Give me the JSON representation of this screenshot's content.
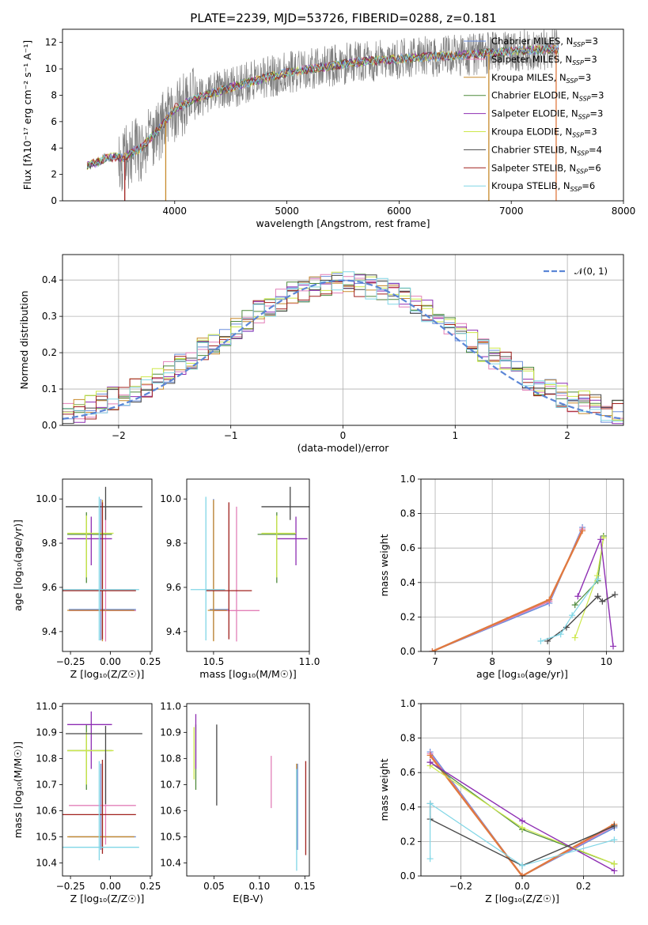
{
  "figure": {
    "title": "PLATE=2239, MJD=53726, FIBERID=0288, z=0.181"
  },
  "colors": {
    "Chabrier MILES": "#6a8ddb",
    "Salpeter MILES": "#e27fb8",
    "Kroupa MILES": "#c88a2c",
    "Chabrier ELODIE": "#4f8a3c",
    "Salpeter ELODIE": "#8e2eb3",
    "Kroupa ELODIE": "#cde84b",
    "Chabrier STELIB": "#484848",
    "Salpeter STELIB": "#a0201d",
    "Kroupa STELIB": "#80d6e6",
    "data": "#7f7f7f",
    "orange_line": "#e0793f",
    "normal": "#5b86d6"
  },
  "chart_data": [
    {
      "panel": "spectrum",
      "type": "line",
      "xlabel": "wavelength [Angstrom, rest frame]",
      "ylabel": "Flux [fλ10⁻¹⁷ erg cm⁻² s⁻¹ A⁻¹]",
      "xlim": [
        3000,
        8000
      ],
      "ylim": [
        0,
        13
      ],
      "xticks": [
        4000,
        5000,
        6000,
        7000,
        8000
      ],
      "yticks": [
        0,
        2,
        4,
        6,
        8,
        10,
        12
      ],
      "x_range_data": [
        3220,
        7420
      ],
      "continuum_x": [
        3220,
        3400,
        3550,
        3700,
        3900,
        4000,
        4200,
        4500,
        4800,
        5000,
        5300,
        5600,
        5900,
        6200,
        6500,
        6800,
        7100,
        7420
      ],
      "continuum_y": [
        2.6,
        3.3,
        3.3,
        4.0,
        5.8,
        7.0,
        7.8,
        8.6,
        9.3,
        9.7,
        10.1,
        10.5,
        10.7,
        10.9,
        11.0,
        11.2,
        11.4,
        11.5
      ],
      "legend_position": "upper right",
      "legend": [
        {
          "label": "Chabrier MILES, N",
          "sub": "SSP",
          "tail": "=3",
          "key": "Chabrier MILES"
        },
        {
          "label": "Salpeter MILES, N",
          "sub": "SSP",
          "tail": "=3",
          "key": "Salpeter MILES"
        },
        {
          "label": "Kroupa MILES, N",
          "sub": "SSP",
          "tail": "=3",
          "key": "Kroupa MILES"
        },
        {
          "label": "Chabrier ELODIE, N",
          "sub": "SSP",
          "tail": "=3",
          "key": "Chabrier ELODIE"
        },
        {
          "label": "Salpeter ELODIE, N",
          "sub": "SSP",
          "tail": "=3",
          "key": "Salpeter ELODIE"
        },
        {
          "label": "Kroupa ELODIE, N",
          "sub": "SSP",
          "tail": "=3",
          "key": "Kroupa ELODIE"
        },
        {
          "label": "Chabrier STELIB, N",
          "sub": "SSP",
          "tail": "=4",
          "key": "Chabrier STELIB"
        },
        {
          "label": "Salpeter STELIB, N",
          "sub": "SSP",
          "tail": "=6",
          "key": "Salpeter STELIB"
        },
        {
          "label": "Kroupa STELIB, N",
          "sub": "SSP",
          "tail": "=6",
          "key": "Kroupa STELIB"
        }
      ]
    },
    {
      "panel": "residuals",
      "type": "line",
      "xlabel": "(data-model)/error",
      "ylabel": "Normed distribution",
      "xlim": [
        -2.5,
        2.5
      ],
      "ylim": [
        0,
        0.47
      ],
      "xticks": [
        -2,
        -1,
        0,
        1,
        2
      ],
      "yticks": [
        0.0,
        0.1,
        0.2,
        0.3,
        0.4
      ],
      "grid": true,
      "legend": [
        {
          "label": "𝒩(0, 1)",
          "style": "dashed"
        }
      ],
      "bin_width": 0.1
    },
    {
      "panel": "age-vs-Z",
      "type": "scatter",
      "xlabel": "Z [log₁₀(Z/Z☉)]",
      "ylabel": "age  [log₁₀(age/yr)]",
      "xlim": [
        -0.3,
        0.26
      ],
      "ylim": [
        9.31,
        10.09
      ],
      "xticks": [
        -0.25,
        0.0,
        0.25
      ],
      "xticklabels": [
        "−0.25",
        "0.00",
        "0.25"
      ],
      "yticks": [
        9.4,
        9.6,
        9.8,
        10.0
      ],
      "points": [
        {
          "key": "Chabrier MILES",
          "x": -0.06,
          "xerr": [
            0.2,
            0.22
          ],
          "y": 9.5,
          "yerr": [
            0.14,
            0.5
          ]
        },
        {
          "key": "Salpeter MILES",
          "x": -0.03,
          "xerr": [
            0.23,
            0.19
          ],
          "y": 9.495,
          "yerr": [
            0.14,
            0.47
          ]
        },
        {
          "key": "Kroupa MILES",
          "x": -0.05,
          "xerr": [
            0.22,
            0.2
          ],
          "y": 9.496,
          "yerr": [
            0.14,
            0.5
          ]
        },
        {
          "key": "Chabrier ELODIE",
          "x": -0.15,
          "xerr": [
            0.12,
            0.16
          ],
          "y": 9.84,
          "yerr": [
            0.22,
            0.1
          ]
        },
        {
          "key": "Salpeter ELODIE",
          "x": -0.12,
          "xerr": [
            0.15,
            0.13
          ],
          "y": 9.82,
          "yerr": [
            0.12,
            0.1
          ]
        },
        {
          "key": "Kroupa ELODIE",
          "x": -0.15,
          "xerr": [
            0.12,
            0.17
          ],
          "y": 9.845,
          "yerr": [
            0.2,
            0.08
          ]
        },
        {
          "key": "Chabrier STELIB",
          "x": -0.03,
          "xerr": [
            0.25,
            0.23
          ],
          "y": 9.965,
          "yerr": [
            0.06,
            0.09
          ]
        },
        {
          "key": "Salpeter STELIB",
          "x": -0.05,
          "xerr": [
            0.25,
            0.21
          ],
          "y": 9.585,
          "yerr": [
            0.22,
            0.4
          ]
        },
        {
          "key": "Kroupa STELIB",
          "x": -0.07,
          "xerr": [
            0.23,
            0.25
          ],
          "y": 9.59,
          "yerr": [
            0.23,
            0.42
          ]
        }
      ]
    },
    {
      "panel": "age-vs-mass",
      "type": "scatter",
      "xlabel": "mass [log₁₀(M/M☉)]",
      "xlim": [
        10.36,
        11.0
      ],
      "ylim": [
        9.31,
        10.09
      ],
      "xticks": [
        10.5,
        11.0
      ],
      "xticklabels": [
        "10.5",
        "11.0"
      ],
      "yticks": [
        9.4,
        9.6,
        9.8,
        10.0
      ],
      "points": [
        {
          "key": "Chabrier MILES",
          "x": 10.5,
          "xerr": [
            0.02,
            0.08
          ],
          "y": 9.5,
          "yerr": [
            0.14,
            0.5
          ]
        },
        {
          "key": "Salpeter MILES",
          "x": 10.62,
          "xerr": [
            0.12,
            0.12
          ],
          "y": 9.495,
          "yerr": [
            0.14,
            0.47
          ]
        },
        {
          "key": "Kroupa MILES",
          "x": 10.5,
          "xerr": [
            0.03,
            0.07
          ],
          "y": 9.496,
          "yerr": [
            0.14,
            0.5
          ]
        },
        {
          "key": "Chabrier ELODIE",
          "x": 10.83,
          "xerr": [
            0.1,
            0.1
          ],
          "y": 9.84,
          "yerr": [
            0.22,
            0.1
          ]
        },
        {
          "key": "Salpeter ELODIE",
          "x": 10.93,
          "xerr": [
            0.1,
            0.06
          ],
          "y": 9.82,
          "yerr": [
            0.12,
            0.1
          ]
        },
        {
          "key": "Kroupa ELODIE",
          "x": 10.83,
          "xerr": [
            0.08,
            0.1
          ],
          "y": 9.845,
          "yerr": [
            0.2,
            0.08
          ]
        },
        {
          "key": "Chabrier STELIB",
          "x": 10.9,
          "xerr": [
            0.15,
            0.12
          ],
          "y": 9.965,
          "yerr": [
            0.06,
            0.09
          ]
        },
        {
          "key": "Salpeter STELIB",
          "x": 10.58,
          "xerr": [
            0.12,
            0.12
          ],
          "y": 9.585,
          "yerr": [
            0.22,
            0.4
          ]
        },
        {
          "key": "Kroupa STELIB",
          "x": 10.46,
          "xerr": [
            0.08,
            0.1
          ],
          "y": 9.59,
          "yerr": [
            0.23,
            0.42
          ]
        }
      ]
    },
    {
      "panel": "mass-weight-vs-age",
      "type": "line",
      "xlabel": "age  [log₁₀(age/yr)]",
      "ylabel": "mass weight",
      "xlim": [
        6.75,
        10.3
      ],
      "ylim": [
        0,
        1.0
      ],
      "xticks": [
        7,
        8,
        9,
        10
      ],
      "yticks": [
        0.0,
        0.2,
        0.4,
        0.6,
        0.8,
        1.0
      ],
      "series": [
        {
          "key": "Chabrier MILES",
          "x": [
            6.95,
            9.0,
            9.58
          ],
          "y": [
            0.0,
            0.28,
            0.72
          ],
          "width": 1.6
        },
        {
          "key": "Salpeter MILES",
          "x": [
            6.95,
            9.0,
            9.58
          ],
          "y": [
            0.0,
            0.29,
            0.71
          ],
          "width": 1.6
        },
        {
          "key": "orange_line",
          "x": [
            6.95,
            9.0,
            9.58
          ],
          "y": [
            0.0,
            0.3,
            0.7
          ],
          "width": 2.4
        },
        {
          "key": "Chabrier ELODIE",
          "x": [
            9.45,
            9.85,
            9.95
          ],
          "y": [
            0.27,
            0.41,
            0.67
          ],
          "width": 1.2
        },
        {
          "key": "Kroupa ELODIE",
          "x": [
            9.45,
            9.84,
            9.95
          ],
          "y": [
            0.08,
            0.44,
            0.66
          ],
          "width": 1.2
        },
        {
          "key": "Salpeter ELODIE",
          "x": [
            9.5,
            9.9,
            10.12
          ],
          "y": [
            0.32,
            0.65,
            0.03
          ],
          "width": 1.4
        },
        {
          "key": "Chabrier STELIB",
          "x": [
            8.97,
            9.3,
            9.85,
            9.93,
            10.15
          ],
          "y": [
            0.06,
            0.14,
            0.32,
            0.29,
            0.33
          ],
          "width": 1.4
        },
        {
          "key": "Kroupa STELIB",
          "x": [
            8.85,
            9.2,
            9.4,
            9.85
          ],
          "y": [
            0.06,
            0.1,
            0.21,
            0.42
          ],
          "width": 1.2
        }
      ]
    },
    {
      "panel": "mass-vs-Z",
      "type": "scatter",
      "xlabel": "Z [log₁₀(Z/Z☉)]",
      "ylabel": "mass [log₁₀(M/M☉)]",
      "xlim": [
        -0.3,
        0.26
      ],
      "ylim": [
        10.35,
        11.01
      ],
      "xticks": [
        -0.25,
        0.0,
        0.25
      ],
      "xticklabels": [
        "−0.25",
        "0.00",
        "0.25"
      ],
      "yticks": [
        10.4,
        10.5,
        10.6,
        10.7,
        10.8,
        10.9,
        11.0
      ],
      "points": [
        {
          "key": "Chabrier MILES",
          "x": -0.06,
          "xerr": [
            0.2,
            0.22
          ],
          "y": 10.5,
          "yerr": [
            0.05,
            0.28
          ]
        },
        {
          "key": "Salpeter MILES",
          "x": -0.03,
          "xerr": [
            0.23,
            0.19
          ],
          "y": 10.62,
          "yerr": [
            0.15,
            0.2
          ]
        },
        {
          "key": "Kroupa MILES",
          "x": -0.05,
          "xerr": [
            0.22,
            0.2
          ],
          "y": 10.5,
          "yerr": [
            0.05,
            0.28
          ]
        },
        {
          "key": "Chabrier ELODIE",
          "x": -0.15,
          "xerr": [
            0.12,
            0.16
          ],
          "y": 10.83,
          "yerr": [
            0.15,
            0.1
          ]
        },
        {
          "key": "Salpeter ELODIE",
          "x": -0.12,
          "xerr": [
            0.15,
            0.13
          ],
          "y": 10.93,
          "yerr": [
            0.17,
            0.05
          ]
        },
        {
          "key": "Kroupa ELODIE",
          "x": -0.15,
          "xerr": [
            0.12,
            0.17
          ],
          "y": 10.83,
          "yerr": [
            0.13,
            0.07
          ]
        },
        {
          "key": "Chabrier STELIB",
          "x": -0.03,
          "xerr": [
            0.25,
            0.23
          ],
          "y": 10.895,
          "yerr": [
            0.27,
            0.03
          ]
        },
        {
          "key": "Salpeter STELIB",
          "x": -0.05,
          "xerr": [
            0.25,
            0.21
          ],
          "y": 10.585,
          "yerr": [
            0.15,
            0.21
          ]
        },
        {
          "key": "Kroupa STELIB",
          "x": -0.07,
          "xerr": [
            0.23,
            0.25
          ],
          "y": 10.46,
          "yerr": [
            0.05,
            0.33
          ]
        }
      ]
    },
    {
      "panel": "mass-vs-EBV",
      "type": "scatter",
      "xlabel": "E(B-V)",
      "xlim": [
        0.02,
        0.155
      ],
      "ylim": [
        10.35,
        11.01
      ],
      "xticks": [
        0.05,
        0.1,
        0.15
      ],
      "xticklabels": [
        "0.05",
        "0.10",
        "0.15"
      ],
      "yticks": [
        10.4,
        10.5,
        10.6,
        10.7,
        10.8,
        10.9,
        11.0
      ],
      "points": [
        {
          "key": "Chabrier MILES",
          "x": 0.142,
          "y": 10.5,
          "yerr": [
            0.05,
            0.28
          ]
        },
        {
          "key": "Salpeter MILES",
          "x": 0.113,
          "y": 10.62,
          "yerr": [
            0.01,
            0.19
          ]
        },
        {
          "key": "Kroupa MILES",
          "x": 0.141,
          "y": 10.5,
          "yerr": [
            0.05,
            0.28
          ]
        },
        {
          "key": "Chabrier ELODIE",
          "x": 0.03,
          "y": 10.78,
          "yerr": [
            0.1,
            0.15
          ]
        },
        {
          "key": "Salpeter ELODIE",
          "x": 0.03,
          "y": 10.88,
          "yerr": [
            0.12,
            0.09
          ]
        },
        {
          "key": "Kroupa ELODIE",
          "x": 0.028,
          "y": 10.82,
          "yerr": [
            0.1,
            0.1
          ]
        },
        {
          "key": "Chabrier STELIB",
          "x": 0.053,
          "y": 10.78,
          "yerr": [
            0.16,
            0.15
          ]
        },
        {
          "key": "Salpeter STELIB",
          "x": 0.151,
          "y": 10.6,
          "yerr": [
            0.17,
            0.19
          ]
        },
        {
          "key": "Kroupa STELIB",
          "x": 0.141,
          "y": 10.46,
          "yerr": [
            0.09,
            0.3
          ]
        }
      ]
    },
    {
      "panel": "mass-weight-vs-Z",
      "type": "line",
      "xlabel": "Z [log₁₀(Z/Z☉)]",
      "ylabel": "mass weight",
      "xlim": [
        -0.33,
        0.33
      ],
      "ylim": [
        0,
        1.0
      ],
      "xticks": [
        -0.2,
        0.0,
        0.2
      ],
      "xticklabels": [
        "−0.2",
        "0.0",
        "0.2"
      ],
      "yticks": [
        0.0,
        0.2,
        0.4,
        0.6,
        0.8,
        1.0
      ],
      "series": [
        {
          "key": "Chabrier MILES",
          "x": [
            -0.3,
            0.0,
            0.3
          ],
          "y": [
            0.72,
            0.0,
            0.28
          ],
          "width": 1.6
        },
        {
          "key": "Salpeter MILES",
          "x": [
            -0.3,
            0.0,
            0.3
          ],
          "y": [
            0.71,
            0.0,
            0.29
          ],
          "width": 1.6
        },
        {
          "key": "orange_line",
          "x": [
            -0.3,
            0.0,
            0.3
          ],
          "y": [
            0.7,
            0.0,
            0.3
          ],
          "width": 2.4
        },
        {
          "key": "Chabrier ELODIE",
          "x": [
            -0.3,
            0.0,
            0.3
          ],
          "y": [
            0.66,
            0.27,
            0.07
          ],
          "width": 1.2
        },
        {
          "key": "Kroupa ELODIE",
          "x": [
            -0.3,
            0.0,
            0.3
          ],
          "y": [
            0.64,
            0.28,
            0.07
          ],
          "width": 1.2
        },
        {
          "key": "Salpeter ELODIE",
          "x": [
            -0.3,
            0.0,
            0.3
          ],
          "y": [
            0.66,
            0.32,
            0.03
          ],
          "width": 1.4
        },
        {
          "key": "Chabrier STELIB",
          "x": [
            -0.3,
            -0.3,
            0.0,
            0.3
          ],
          "y": [
            0.42,
            0.33,
            0.06,
            0.29
          ],
          "width": 1.4
        },
        {
          "key": "Kroupa STELIB",
          "x": [
            -0.3,
            -0.3,
            0.0,
            0.3
          ],
          "y": [
            0.1,
            0.42,
            0.06,
            0.21
          ],
          "width": 1.2
        }
      ]
    }
  ]
}
